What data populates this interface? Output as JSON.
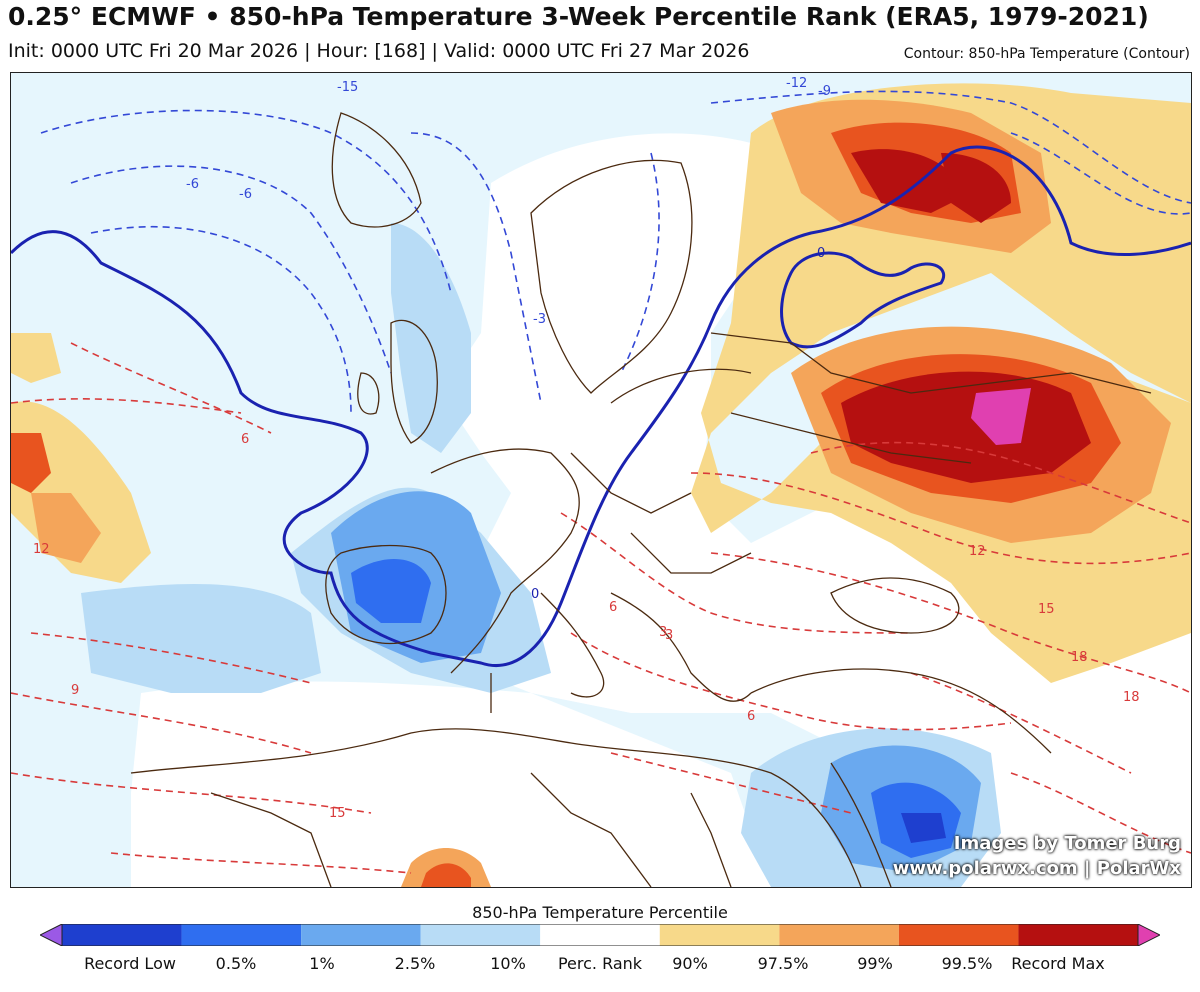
{
  "header": {
    "title": "0.25° ECMWF • 850-hPa Temperature 3-Week Percentile Rank (ERA5, 1979-2021)",
    "subtitle": "Init: 0000 UTC Fri 20 Mar 2026 | Hour: [168] | Valid: 0000 UTC Fri 27 Mar 2026",
    "contour_note": "Contour: 850-hPa Temperature (Contour)"
  },
  "map": {
    "contour_labels": [
      "-15",
      "-12",
      "-9",
      "-6",
      "-6",
      "-3",
      "0",
      "0",
      "3",
      "6",
      "6",
      "9",
      "12",
      "12",
      "15",
      "15",
      "18",
      "18",
      "6",
      "3"
    ]
  },
  "credit": {
    "line1": "Images by Tomer Burg",
    "line2": "www.polarwx.com | PolarWx"
  },
  "colorbar": {
    "title": "850-hPa Temperature Percentile",
    "labels": [
      "Record Low",
      "0.5%",
      "1%",
      "2.5%",
      "10%",
      "Perc. Rank",
      "90%",
      "97.5%",
      "99%",
      "99.5%",
      "Record Max"
    ],
    "colors": [
      "#9b59e6",
      "#1e3fcf",
      "#2f6ef0",
      "#6aa9ef",
      "#b8dcf6",
      "#ffffff",
      "#f7d98a",
      "#f4a55a",
      "#e8541f",
      "#b51010",
      "#e040b0"
    ]
  }
}
